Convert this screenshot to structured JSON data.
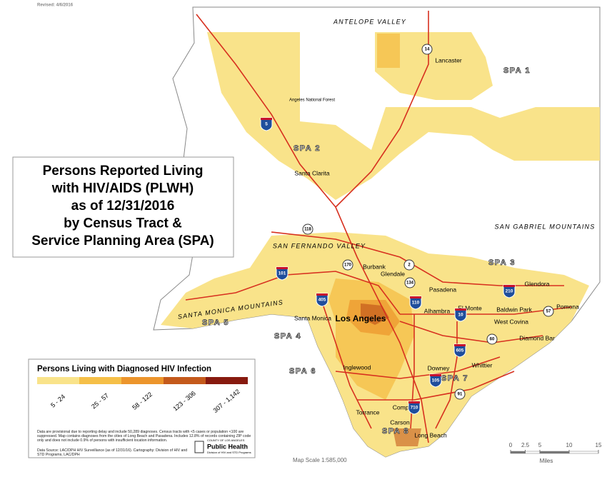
{
  "revised": "Revised: 4/6/2016",
  "title_lines": [
    "Persons Reported Living",
    "with HIV/AIDS (PLWH)",
    "as of 12/31/2016",
    "by Census Tract &",
    "Service Planning Area (SPA)"
  ],
  "regions": [
    "ANTELOPE VALLEY",
    "SAN GABRIEL MOUNTAINS",
    "SAN FERNANDO VALLEY",
    "SANTA MONICA MOUNTAINS"
  ],
  "places": [
    "Lancaster",
    "Angeles National Forest",
    "Santa Clarita",
    "Burbank",
    "Glendale",
    "Pasadena",
    "Glendora",
    "El Monte",
    "Baldwin Park",
    "Pomona",
    "West Covina",
    "Diamond Bar",
    "Alhambra",
    "Santa Monica",
    "Los Angeles",
    "Inglewood",
    "Downey",
    "Whittier",
    "Compton",
    "Torrance",
    "Carson",
    "Long Beach"
  ],
  "spas": [
    "SPA 1",
    "SPA 2",
    "SPA 3",
    "SPA 4",
    "SPA 5",
    "SPA 6",
    "SPA 7",
    "SPA 8"
  ],
  "routes": [
    "14",
    "5",
    "118",
    "170",
    "2",
    "134",
    "101",
    "405",
    "110",
    "10",
    "210",
    "57",
    "60",
    "605",
    "105",
    "91",
    "710"
  ],
  "legend": {
    "title": "Persons Living with Diagnosed HIV Infection",
    "classes": [
      {
        "label": "5 - 24",
        "color": "#f9e38a"
      },
      {
        "label": "25 - 57",
        "color": "#f5bf48"
      },
      {
        "label": "58 - 122",
        "color": "#ec952c"
      },
      {
        "label": "123 - 306",
        "color": "#c45a1c"
      },
      {
        "label": "307 - 1,142",
        "color": "#871a0f"
      }
    ]
  },
  "notes": "Data are provisional due to reporting delay and include 50,289 diagnoses. Census tracts with <5 cases or population <100 are suppressed. Map contains diagnoses from the cities of Long Beach and Pasadena. Includes 12.8% of records containing ZIP code only and does not include 0.9% of persons with insufficient location information.",
  "source": "Data Source: LAC/DPH HIV Surveillance (as of 12/31/16). Cartography: Division of HIV and STD Programs, LAC/DPH",
  "logo": {
    "county": "COUNTY OF LOS ANGELES",
    "name": "Public Health",
    "division": "Division of HIV and STD Programs"
  },
  "scale": {
    "text": "Map Scale 1:585,000",
    "ticks": [
      0,
      2.5,
      5,
      10,
      15
    ],
    "unit": "Miles"
  }
}
